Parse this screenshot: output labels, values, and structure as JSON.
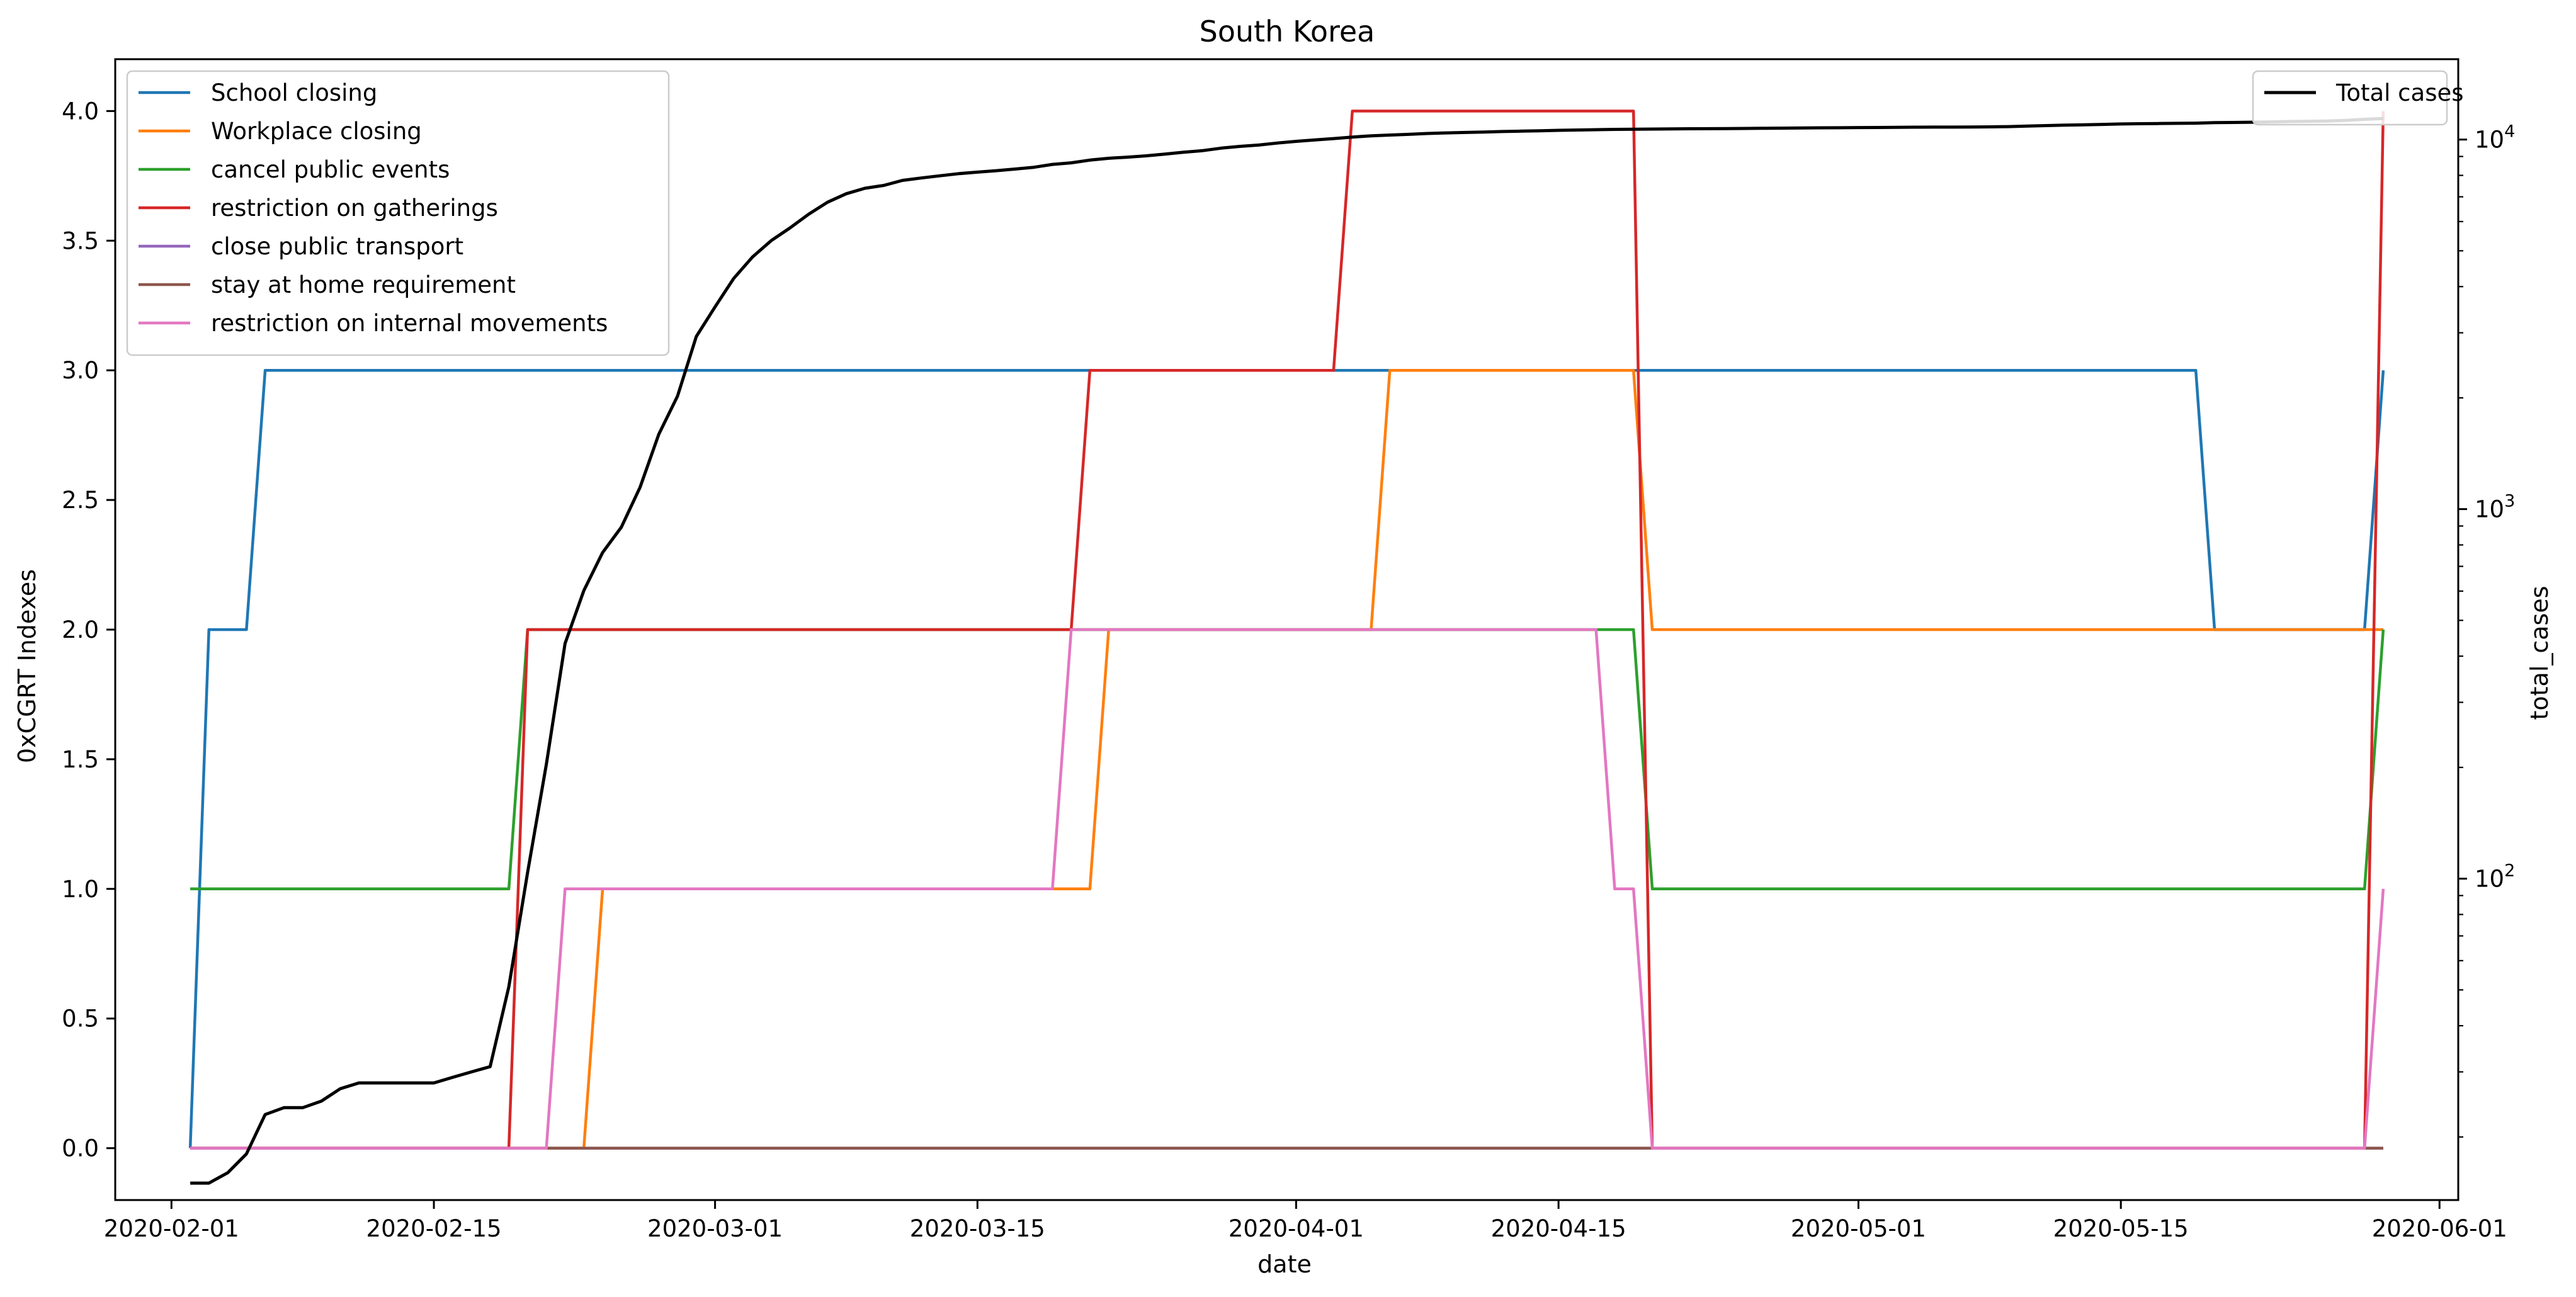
{
  "chart_data": {
    "type": "line",
    "title": "South Korea",
    "xlabel": "date",
    "ylabel": "0xCGRT Indexes",
    "ylabel_right": "total_cases",
    "x_range": [
      "2020-01-29",
      "2020-06-02"
    ],
    "ylim": [
      -0.2,
      4.2
    ],
    "y2lim": [
      13.5,
      16500
    ],
    "y2_scale": "log",
    "grid": false,
    "x_ticks": [
      "2020-02-01",
      "2020-02-15",
      "2020-03-01",
      "2020-03-15",
      "2020-04-01",
      "2020-04-15",
      "2020-05-01",
      "2020-05-15",
      "2020-06-01"
    ],
    "y_ticks": [
      "0.0",
      "0.5",
      "1.0",
      "1.5",
      "2.0",
      "2.5",
      "3.0",
      "3.5",
      "4.0"
    ],
    "y2_ticks": [
      {
        "value": 100,
        "base": "10",
        "exp": "2"
      },
      {
        "value": 1000,
        "base": "10",
        "exp": "3"
      },
      {
        "value": 10000,
        "base": "10",
        "exp": "4"
      }
    ],
    "legend_left": {
      "placement": "upper-left"
    },
    "legend_right": {
      "placement": "upper-right"
    },
    "series": [
      {
        "name": "School closing",
        "color": "#1f77b4",
        "axis": "left",
        "points": [
          [
            "2020-02-02",
            0
          ],
          [
            "2020-02-03",
            2
          ],
          [
            "2020-02-05",
            2
          ],
          [
            "2020-02-06",
            3
          ],
          [
            "2020-05-19",
            3
          ],
          [
            "2020-05-20",
            2
          ],
          [
            "2020-05-28",
            2
          ],
          [
            "2020-05-29",
            3
          ]
        ]
      },
      {
        "name": "Workplace closing",
        "color": "#ff7f0e",
        "axis": "left",
        "points": [
          [
            "2020-02-02",
            0
          ],
          [
            "2020-02-23",
            0
          ],
          [
            "2020-02-24",
            1
          ],
          [
            "2020-03-21",
            1
          ],
          [
            "2020-03-22",
            2
          ],
          [
            "2020-04-05",
            2
          ],
          [
            "2020-04-06",
            3
          ],
          [
            "2020-04-19",
            3
          ],
          [
            "2020-04-20",
            2
          ],
          [
            "2020-05-29",
            2
          ]
        ]
      },
      {
        "name": "cancel public events",
        "color": "#2ca02c",
        "axis": "left",
        "points": [
          [
            "2020-02-02",
            1
          ],
          [
            "2020-02-19",
            1
          ],
          [
            "2020-02-20",
            2
          ],
          [
            "2020-04-19",
            2
          ],
          [
            "2020-04-20",
            1
          ],
          [
            "2020-05-28",
            1
          ],
          [
            "2020-05-29",
            2
          ]
        ]
      },
      {
        "name": "restriction on gatherings",
        "color": "#d62728",
        "axis": "left",
        "points": [
          [
            "2020-02-02",
            0
          ],
          [
            "2020-02-19",
            0
          ],
          [
            "2020-02-20",
            2
          ],
          [
            "2020-03-20",
            2
          ],
          [
            "2020-03-21",
            3
          ],
          [
            "2020-04-03",
            3
          ],
          [
            "2020-04-04",
            4
          ],
          [
            "2020-04-19",
            4
          ],
          [
            "2020-04-20",
            0
          ],
          [
            "2020-05-28",
            0
          ],
          [
            "2020-05-29",
            4
          ]
        ]
      },
      {
        "name": "close public transport",
        "color": "#9467bd",
        "axis": "left",
        "points": [
          [
            "2020-02-02",
            0
          ],
          [
            "2020-05-29",
            0
          ]
        ]
      },
      {
        "name": "stay at home requirement",
        "color": "#8c564b",
        "axis": "left",
        "points": [
          [
            "2020-02-02",
            0
          ],
          [
            "2020-05-29",
            0
          ]
        ]
      },
      {
        "name": "restriction on internal movements",
        "color": "#e377c2",
        "axis": "left",
        "points": [
          [
            "2020-02-02",
            0
          ],
          [
            "2020-02-21",
            0
          ],
          [
            "2020-02-22",
            1
          ],
          [
            "2020-03-19",
            1
          ],
          [
            "2020-03-20",
            2
          ],
          [
            "2020-04-17",
            2
          ],
          [
            "2020-04-18",
            1
          ],
          [
            "2020-04-19",
            1
          ],
          [
            "2020-04-20",
            0
          ],
          [
            "2020-05-28",
            0
          ],
          [
            "2020-05-29",
            1
          ]
        ]
      },
      {
        "name": "Total cases",
        "color": "#000000",
        "axis": "right",
        "points": [
          [
            "2020-02-02",
            15
          ],
          [
            "2020-02-03",
            15
          ],
          [
            "2020-02-04",
            16
          ],
          [
            "2020-02-05",
            18
          ],
          [
            "2020-02-06",
            23
          ],
          [
            "2020-02-07",
            24
          ],
          [
            "2020-02-08",
            24
          ],
          [
            "2020-02-09",
            25
          ],
          [
            "2020-02-10",
            27
          ],
          [
            "2020-02-11",
            28
          ],
          [
            "2020-02-12",
            28
          ],
          [
            "2020-02-13",
            28
          ],
          [
            "2020-02-14",
            28
          ],
          [
            "2020-02-15",
            28
          ],
          [
            "2020-02-16",
            29
          ],
          [
            "2020-02-17",
            30
          ],
          [
            "2020-02-18",
            31
          ],
          [
            "2020-02-19",
            51
          ],
          [
            "2020-02-20",
            104
          ],
          [
            "2020-02-21",
            204
          ],
          [
            "2020-02-22",
            433
          ],
          [
            "2020-02-23",
            602
          ],
          [
            "2020-02-24",
            763
          ],
          [
            "2020-02-25",
            893
          ],
          [
            "2020-02-26",
            1146
          ],
          [
            "2020-02-27",
            1595
          ],
          [
            "2020-02-28",
            2022
          ],
          [
            "2020-02-29",
            2931
          ],
          [
            "2020-03-01",
            3526
          ],
          [
            "2020-03-02",
            4212
          ],
          [
            "2020-03-03",
            4812
          ],
          [
            "2020-03-04",
            5328
          ],
          [
            "2020-03-05",
            5766
          ],
          [
            "2020-03-06",
            6284
          ],
          [
            "2020-03-07",
            6767
          ],
          [
            "2020-03-08",
            7134
          ],
          [
            "2020-03-09",
            7382
          ],
          [
            "2020-03-10",
            7513
          ],
          [
            "2020-03-11",
            7755
          ],
          [
            "2020-03-12",
            7869
          ],
          [
            "2020-03-13",
            7979
          ],
          [
            "2020-03-14",
            8086
          ],
          [
            "2020-03-15",
            8162
          ],
          [
            "2020-03-16",
            8236
          ],
          [
            "2020-03-17",
            8320
          ],
          [
            "2020-03-18",
            8413
          ],
          [
            "2020-03-19",
            8565
          ],
          [
            "2020-03-20",
            8652
          ],
          [
            "2020-03-21",
            8799
          ],
          [
            "2020-03-22",
            8897
          ],
          [
            "2020-03-23",
            8961
          ],
          [
            "2020-03-24",
            9037
          ],
          [
            "2020-03-25",
            9137
          ],
          [
            "2020-03-26",
            9241
          ],
          [
            "2020-03-27",
            9332
          ],
          [
            "2020-03-28",
            9478
          ],
          [
            "2020-03-29",
            9583
          ],
          [
            "2020-03-30",
            9661
          ],
          [
            "2020-03-31",
            9786
          ],
          [
            "2020-04-01",
            9887
          ],
          [
            "2020-04-02",
            9976
          ],
          [
            "2020-04-03",
            10062
          ],
          [
            "2020-04-04",
            10156
          ],
          [
            "2020-04-05",
            10237
          ],
          [
            "2020-04-06",
            10284
          ],
          [
            "2020-04-07",
            10331
          ],
          [
            "2020-04-08",
            10384
          ],
          [
            "2020-04-09",
            10423
          ],
          [
            "2020-04-10",
            10450
          ],
          [
            "2020-04-11",
            10480
          ],
          [
            "2020-04-12",
            10512
          ],
          [
            "2020-04-13",
            10537
          ],
          [
            "2020-04-14",
            10564
          ],
          [
            "2020-04-15",
            10591
          ],
          [
            "2020-04-16",
            10613
          ],
          [
            "2020-04-17",
            10635
          ],
          [
            "2020-04-18",
            10653
          ],
          [
            "2020-04-19",
            10661
          ],
          [
            "2020-04-20",
            10674
          ],
          [
            "2020-04-21",
            10683
          ],
          [
            "2020-04-22",
            10694
          ],
          [
            "2020-04-23",
            10702
          ],
          [
            "2020-04-24",
            10708
          ],
          [
            "2020-04-25",
            10718
          ],
          [
            "2020-04-26",
            10728
          ],
          [
            "2020-04-27",
            10738
          ],
          [
            "2020-04-28",
            10752
          ],
          [
            "2020-04-29",
            10761
          ],
          [
            "2020-04-30",
            10765
          ],
          [
            "2020-05-01",
            10774
          ],
          [
            "2020-05-02",
            10780
          ],
          [
            "2020-05-03",
            10793
          ],
          [
            "2020-05-04",
            10801
          ],
          [
            "2020-05-05",
            10804
          ],
          [
            "2020-05-06",
            10806
          ],
          [
            "2020-05-07",
            10810
          ],
          [
            "2020-05-08",
            10822
          ],
          [
            "2020-05-09",
            10840
          ],
          [
            "2020-05-10",
            10874
          ],
          [
            "2020-05-11",
            10909
          ],
          [
            "2020-05-12",
            10936
          ],
          [
            "2020-05-13",
            10962
          ],
          [
            "2020-05-14",
            10991
          ],
          [
            "2020-05-15",
            11018
          ],
          [
            "2020-05-16",
            11037
          ],
          [
            "2020-05-17",
            11050
          ],
          [
            "2020-05-18",
            11065
          ],
          [
            "2020-05-19",
            11078
          ],
          [
            "2020-05-20",
            11110
          ],
          [
            "2020-05-21",
            11122
          ],
          [
            "2020-05-22",
            11142
          ],
          [
            "2020-05-23",
            11165
          ],
          [
            "2020-05-24",
            11190
          ],
          [
            "2020-05-25",
            11206
          ],
          [
            "2020-05-26",
            11225
          ],
          [
            "2020-05-27",
            11265
          ],
          [
            "2020-05-28",
            11344
          ],
          [
            "2020-05-29",
            11402
          ]
        ]
      }
    ]
  }
}
